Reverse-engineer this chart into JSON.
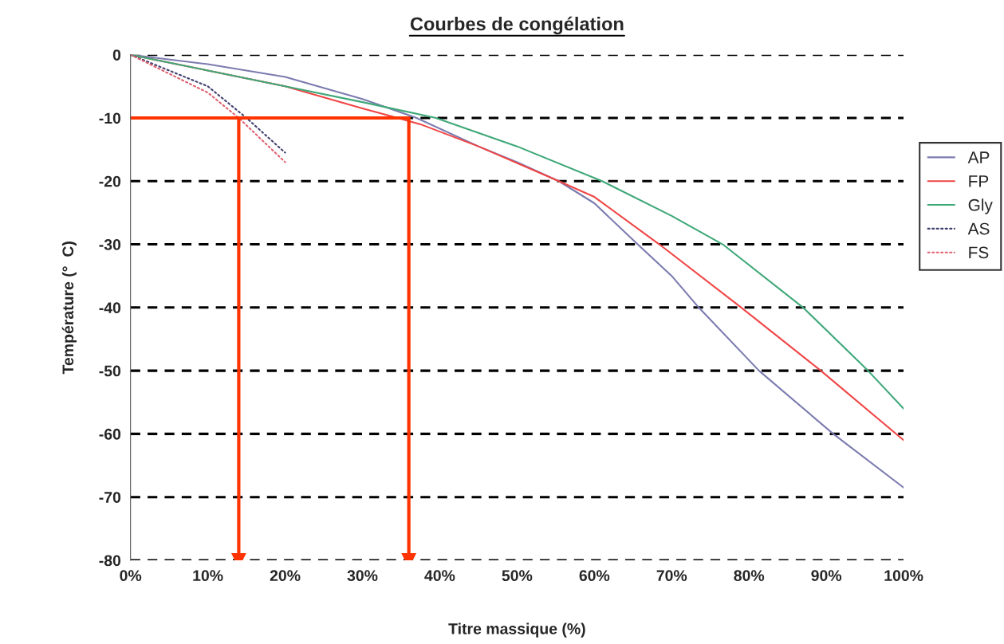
{
  "chart_data": {
    "type": "line",
    "title": "Courbes de congélation",
    "xlabel": "Titre massique (%)",
    "ylabel": "Température (°  C)",
    "xlim": [
      0,
      100
    ],
    "ylim": [
      -80,
      0
    ],
    "xticks": [
      {
        "value": 0,
        "label": "0%"
      },
      {
        "value": 10,
        "label": "10%"
      },
      {
        "value": 20,
        "label": "20%"
      },
      {
        "value": 30,
        "label": "30%"
      },
      {
        "value": 40,
        "label": "40%"
      },
      {
        "value": 50,
        "label": "50%"
      },
      {
        "value": 60,
        "label": "60%"
      },
      {
        "value": 70,
        "label": "70%"
      },
      {
        "value": 80,
        "label": "80%"
      },
      {
        "value": 90,
        "label": "90%"
      },
      {
        "value": 100,
        "label": "100%"
      }
    ],
    "yticks": [
      -80,
      -70,
      -60,
      -50,
      -40,
      -30,
      -20,
      -10,
      0
    ],
    "grid": "y",
    "legend": "right",
    "series": [
      {
        "name": "AP",
        "color": "#7b7bb0",
        "x": [
          0,
          10,
          20,
          30,
          37,
          45,
          50,
          55.4,
          60,
          65.6,
          70,
          73.5,
          81.3,
          90.9,
          100
        ],
        "values": [
          0,
          -1.5,
          -3.5,
          -7,
          -10,
          -14.5,
          -17,
          -20,
          -23.5,
          -30,
          -35,
          -40,
          -50,
          -60,
          -68.5
        ]
      },
      {
        "name": "FP",
        "color": "#f04545",
        "x": [
          0,
          10,
          20,
          30,
          37.5,
          45,
          55.4,
          60,
          68.4,
          79,
          89.3,
          100
        ],
        "values": [
          0,
          -2.5,
          -5,
          -8.5,
          -11,
          -14.5,
          -20,
          -22.5,
          -30,
          -40,
          -50,
          -61
        ]
      },
      {
        "name": "Gly",
        "color": "#3fa878",
        "x": [
          0,
          10,
          20,
          30,
          39.5,
          50,
          61,
          70,
          76.6,
          87,
          95.4,
          100
        ],
        "values": [
          0,
          -2.5,
          -5,
          -7.5,
          -10,
          -14.5,
          -20,
          -25.5,
          -30,
          -40,
          -50,
          -56
        ]
      },
      {
        "name": "AS",
        "color": "#404070",
        "line_style": "dotted",
        "x": [
          0,
          5,
          10,
          15,
          20
        ],
        "values": [
          0,
          -2.5,
          -5,
          -10,
          -15.5
        ]
      },
      {
        "name": "FS",
        "color": "#e06070",
        "line_style": "dotted",
        "x": [
          0,
          5,
          10,
          14,
          20
        ],
        "values": [
          0,
          -3,
          -6,
          -10,
          -17
        ]
      },
      {
        "color": "#ff3300",
        "marker": "triangle",
        "x": [
          14,
          14
        ],
        "values": [
          -10,
          -80
        ]
      },
      {
        "color": "#ff3300",
        "marker": "triangle",
        "x": [
          36,
          36
        ],
        "values": [
          -10,
          -80
        ]
      },
      {
        "color": "#ff3300",
        "x": [
          0,
          36
        ],
        "values": [
          -10,
          -10
        ]
      }
    ]
  }
}
